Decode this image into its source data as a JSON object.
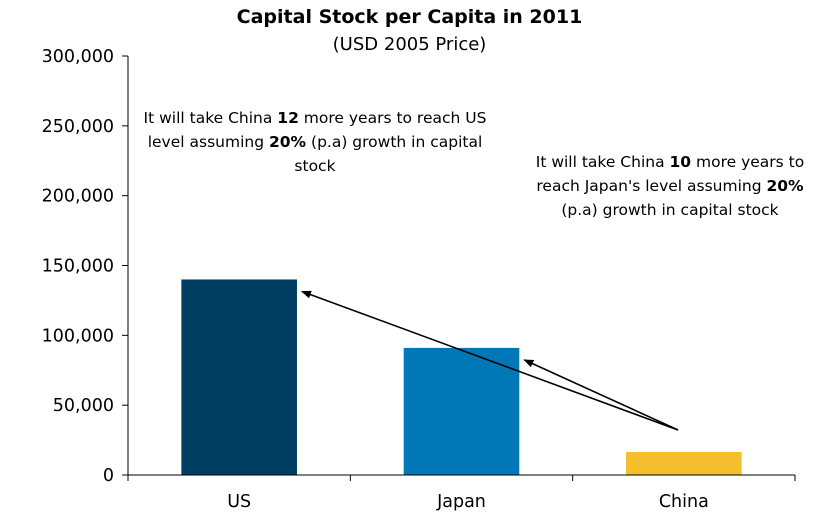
{
  "chart_data": {
    "type": "bar",
    "title": "Capital Stock per Capita in 2011",
    "subtitle": "(USD 2005 Price)",
    "categories": [
      "US",
      "Japan",
      "China"
    ],
    "values": [
      140000,
      91000,
      16500
    ],
    "colors": [
      "#003f62",
      "#0078b8",
      "#f5be2d"
    ],
    "ylim": [
      0,
      300000
    ],
    "yticks": [
      0,
      50000,
      100000,
      150000,
      200000,
      250000,
      300000
    ],
    "ytick_labels": [
      "0",
      "50,000",
      "100,000",
      "150,000",
      "200,000",
      "250,000",
      "300,000"
    ],
    "xlabel": "",
    "ylabel": "",
    "grid": false,
    "annotations": [
      {
        "pre": "It will take China ",
        "years": "12",
        "mid": " more years to reach US level assuming ",
        "rate": "20%",
        "post": " (p.a) growth in capital stock"
      },
      {
        "pre": "It will take China ",
        "years": "10",
        "mid": " more years to reach Japan's level assuming ",
        "rate": "20%",
        "post": " (p.a) growth in capital stock"
      }
    ],
    "arrows": [
      {
        "from": "China",
        "to": "US"
      },
      {
        "from": "China",
        "to": "Japan"
      }
    ]
  }
}
